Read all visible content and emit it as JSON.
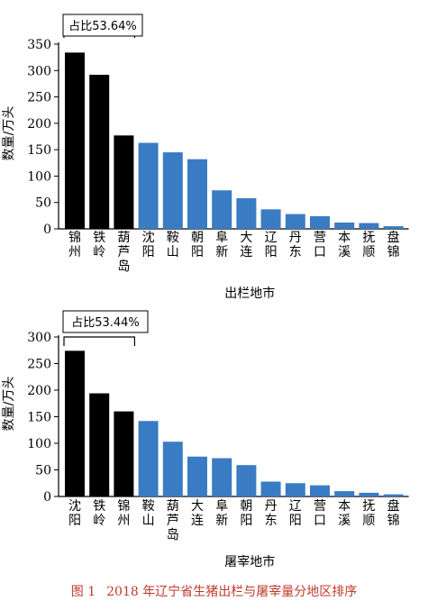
{
  "figure": {
    "caption_label": "图 1",
    "caption_text": "2018 年辽宁省生猪出栏与屠宰量分地区排序"
  },
  "colors": {
    "top3": "#000000",
    "rest": "#3a7cc4",
    "axis": "#000000",
    "caption": "#c0392b"
  },
  "chart_data": [
    {
      "type": "bar",
      "categories": [
        "锦州",
        "铁岭",
        "葫芦岛",
        "沈阳",
        "鞍山",
        "朝阳",
        "阜新",
        "大连",
        "辽阳",
        "丹东",
        "营口",
        "本溪",
        "抚顺",
        "盘锦"
      ],
      "values": [
        334,
        292,
        177,
        163,
        145,
        132,
        73,
        58,
        37,
        28,
        24,
        12,
        11,
        5
      ],
      "highlight_count": 3,
      "annotation": "占比53.64%",
      "xlabel": "出栏地市",
      "ylabel": "数量/万头",
      "ylim": [
        0,
        350
      ],
      "yticks": [
        0,
        50,
        100,
        150,
        200,
        250,
        300,
        350
      ],
      "grid": false
    },
    {
      "type": "bar",
      "categories": [
        "沈阳",
        "铁岭",
        "锦州",
        "鞍山",
        "葫芦岛",
        "大连",
        "阜新",
        "朝阳",
        "丹东",
        "辽阳",
        "营口",
        "本溪",
        "抚顺",
        "盘锦"
      ],
      "values": [
        274,
        194,
        160,
        142,
        103,
        75,
        72,
        59,
        28,
        25,
        21,
        10,
        7,
        4
      ],
      "highlight_count": 3,
      "annotation": "占比53.44%",
      "xlabel": "屠宰地市",
      "ylabel": "数量/万头",
      "ylim": [
        0,
        300
      ],
      "yticks": [
        0,
        50,
        100,
        150,
        200,
        250,
        300
      ],
      "grid": false
    }
  ]
}
